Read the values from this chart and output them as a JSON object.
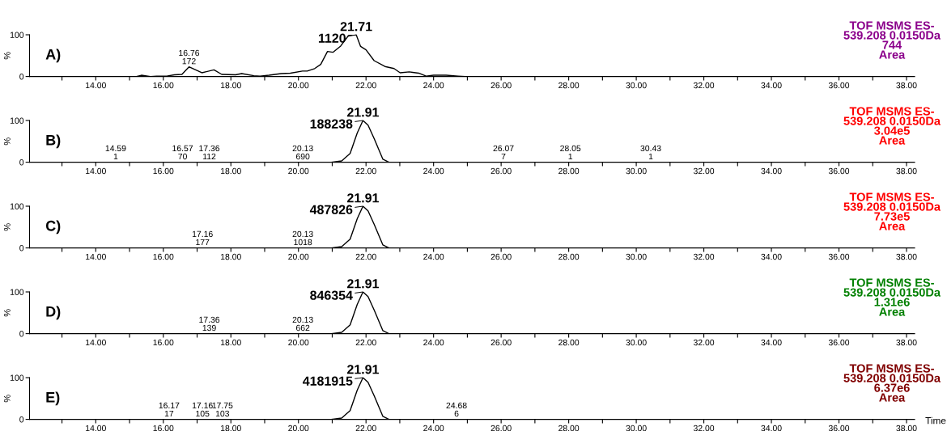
{
  "chart_data": [
    {
      "type": "line",
      "title": "A)",
      "subtitle": "TOF MSMS ES-\n539.208 0.0150Da\n744\nArea",
      "ylabel": "%",
      "x": [
        12.05,
        15.2,
        15.35,
        15.62,
        15.8,
        16.1,
        16.33,
        16.55,
        16.76,
        17.14,
        17.5,
        17.73,
        18.14,
        18.32,
        18.68,
        18.86,
        19.13,
        19.49,
        19.76,
        20.12,
        20.26,
        20.48,
        20.66,
        20.86,
        21.02,
        21.25,
        21.48,
        21.6,
        21.71,
        21.84,
        22.0,
        22.24,
        22.56,
        22.83,
        23.01,
        23.28,
        23.56,
        23.78,
        24.0,
        24.37,
        24.73,
        24.95,
        38.2
      ],
      "series": [
        {
          "color": "#000000",
          "values": [
            0,
            0,
            3,
            0,
            1,
            1,
            4,
            5,
            23,
            9,
            16,
            5,
            4,
            7,
            2,
            1,
            3,
            7,
            8,
            13,
            13,
            19,
            29,
            60,
            58,
            73,
            98,
            100,
            100,
            72,
            64,
            38,
            24,
            19,
            9,
            11,
            8,
            1,
            3,
            3,
            1,
            0,
            0
          ]
        }
      ],
      "annotations": [
        {
          "text": "21.71",
          "x": 21.71,
          "y": 100
        },
        {
          "text": "1120",
          "x": 21.71,
          "y": 100
        },
        {
          "text": "16.76\n172",
          "x": 16.76,
          "y": 23
        }
      ],
      "xlim": [
        12.04,
        38.24
      ],
      "ylim": [
        0,
        100
      ],
      "xticks": [
        {
          "value": 13,
          "label": null
        },
        {
          "value": 14,
          "label": "14.00"
        },
        {
          "value": 15,
          "label": null
        },
        {
          "value": 16,
          "label": "16.00"
        },
        {
          "value": 17,
          "label": null
        },
        {
          "value": 18,
          "label": "18.00"
        },
        {
          "value": 19,
          "label": null
        },
        {
          "value": 20,
          "label": "20.00"
        },
        {
          "value": 21,
          "label": null
        },
        {
          "value": 22,
          "label": "22.00"
        },
        {
          "value": 23,
          "label": null
        },
        {
          "value": 24,
          "label": "24.00"
        },
        {
          "value": 25,
          "label": null
        },
        {
          "value": 26,
          "label": "26.00"
        },
        {
          "value": 27,
          "label": null
        },
        {
          "value": 28,
          "label": "28.00"
        },
        {
          "value": 29,
          "label": null
        },
        {
          "value": 30,
          "label": "30.00"
        },
        {
          "value": 31,
          "label": null
        },
        {
          "value": 32,
          "label": "32.00"
        },
        {
          "value": 33,
          "label": null
        },
        {
          "value": 34,
          "label": "34.00"
        },
        {
          "value": 35,
          "label": null
        },
        {
          "value": 36,
          "label": "36.00"
        },
        {
          "value": 37,
          "label": null
        },
        {
          "value": 38,
          "label": "38.00"
        }
      ],
      "yticks": [
        0,
        100
      ]
    },
    {
      "type": "line",
      "title": "B)",
      "subtitle": "TOF MSMS ES-\n539.208 0.0150Da\n3.04e5\nArea",
      "ylabel": "%",
      "x": [
        12.05,
        20.97,
        21.28,
        21.53,
        21.74,
        21.91,
        22.06,
        22.24,
        22.5,
        22.68,
        38.2
      ],
      "series": [
        {
          "color": "#000000",
          "values": [
            0,
            0,
            3,
            21,
            70,
            100,
            89,
            57,
            7,
            0,
            0
          ]
        }
      ],
      "annotations": [
        {
          "text": "21.91",
          "x": 21.91,
          "y": 100
        },
        {
          "text": "188238",
          "x": 21.91,
          "y": 100
        },
        {
          "text": "14.59\n1",
          "x": 14.59,
          "y": 0
        },
        {
          "text": "16.57\n70",
          "x": 16.57,
          "y": 0
        },
        {
          "text": "17.36\n112",
          "x": 17.36,
          "y": 0
        },
        {
          "text": "20.13\n690",
          "x": 20.13,
          "y": 0
        },
        {
          "text": "26.07\n7",
          "x": 26.07,
          "y": 0
        },
        {
          "text": "28.05\n1",
          "x": 28.05,
          "y": 0
        },
        {
          "text": "30.43\n1",
          "x": 30.43,
          "y": 0
        }
      ],
      "xlim": [
        12.04,
        38.24
      ],
      "ylim": [
        0,
        100
      ],
      "xticks": [
        {
          "value": 13,
          "label": null
        },
        {
          "value": 14,
          "label": "14.00"
        },
        {
          "value": 15,
          "label": null
        },
        {
          "value": 16,
          "label": "16.00"
        },
        {
          "value": 17,
          "label": null
        },
        {
          "value": 18,
          "label": "18.00"
        },
        {
          "value": 19,
          "label": null
        },
        {
          "value": 20,
          "label": "20.00"
        },
        {
          "value": 21,
          "label": null
        },
        {
          "value": 22,
          "label": "22.00"
        },
        {
          "value": 23,
          "label": null
        },
        {
          "value": 24,
          "label": "24.00"
        },
        {
          "value": 25,
          "label": null
        },
        {
          "value": 26,
          "label": "26.00"
        },
        {
          "value": 27,
          "label": null
        },
        {
          "value": 28,
          "label": "28.00"
        },
        {
          "value": 29,
          "label": null
        },
        {
          "value": 30,
          "label": "30.00"
        },
        {
          "value": 31,
          "label": null
        },
        {
          "value": 32,
          "label": "32.00"
        },
        {
          "value": 33,
          "label": null
        },
        {
          "value": 34,
          "label": "34.00"
        },
        {
          "value": 35,
          "label": null
        },
        {
          "value": 36,
          "label": "36.00"
        },
        {
          "value": 37,
          "label": null
        },
        {
          "value": 38,
          "label": "38.00"
        }
      ],
      "yticks": [
        0,
        100
      ]
    },
    {
      "type": "line",
      "title": "C)",
      "subtitle": "TOF MSMS ES-\n539.208 0.0150Da\n7.73e5\nArea",
      "ylabel": "%",
      "x": [
        12.05,
        20.97,
        21.28,
        21.53,
        21.74,
        21.91,
        22.06,
        22.24,
        22.5,
        22.68,
        38.2
      ],
      "series": [
        {
          "color": "#000000",
          "values": [
            0,
            0,
            3,
            21,
            70,
            100,
            89,
            57,
            7,
            0,
            0
          ]
        }
      ],
      "annotations": [
        {
          "text": "21.91",
          "x": 21.91,
          "y": 100
        },
        {
          "text": "487826",
          "x": 21.91,
          "y": 100
        },
        {
          "text": "17.16\n177",
          "x": 17.16,
          "y": 0
        },
        {
          "text": "20.13\n1018",
          "x": 20.13,
          "y": 0
        }
      ],
      "xlim": [
        12.04,
        38.24
      ],
      "ylim": [
        0,
        100
      ],
      "xticks": [
        {
          "value": 13,
          "label": null
        },
        {
          "value": 14,
          "label": "14.00"
        },
        {
          "value": 15,
          "label": null
        },
        {
          "value": 16,
          "label": "16.00"
        },
        {
          "value": 17,
          "label": null
        },
        {
          "value": 18,
          "label": "18.00"
        },
        {
          "value": 19,
          "label": null
        },
        {
          "value": 20,
          "label": "20.00"
        },
        {
          "value": 21,
          "label": null
        },
        {
          "value": 22,
          "label": "22.00"
        },
        {
          "value": 23,
          "label": null
        },
        {
          "value": 24,
          "label": "24.00"
        },
        {
          "value": 25,
          "label": null
        },
        {
          "value": 26,
          "label": "26.00"
        },
        {
          "value": 27,
          "label": null
        },
        {
          "value": 28,
          "label": "28.00"
        },
        {
          "value": 29,
          "label": null
        },
        {
          "value": 30,
          "label": "30.00"
        },
        {
          "value": 31,
          "label": null
        },
        {
          "value": 32,
          "label": "32.00"
        },
        {
          "value": 33,
          "label": null
        },
        {
          "value": 34,
          "label": "34.00"
        },
        {
          "value": 35,
          "label": null
        },
        {
          "value": 36,
          "label": "36.00"
        },
        {
          "value": 37,
          "label": null
        },
        {
          "value": 38,
          "label": "38.00"
        }
      ],
      "yticks": [
        0,
        100
      ]
    },
    {
      "type": "line",
      "title": "D)",
      "subtitle": "TOF MSMS ES-\n539.208 0.0150Da\n1.31e6\nArea",
      "ylabel": "%",
      "x": [
        12.05,
        20.97,
        21.28,
        21.53,
        21.74,
        21.91,
        22.06,
        22.24,
        22.5,
        22.68,
        38.2
      ],
      "series": [
        {
          "color": "#000000",
          "values": [
            0,
            0,
            3,
            21,
            70,
            100,
            89,
            57,
            7,
            0,
            0
          ]
        }
      ],
      "annotations": [
        {
          "text": "21.91",
          "x": 21.91,
          "y": 100
        },
        {
          "text": "846354",
          "x": 21.91,
          "y": 100
        },
        {
          "text": "17.36\n139",
          "x": 17.36,
          "y": 0
        },
        {
          "text": "20.13\n662",
          "x": 20.13,
          "y": 0
        }
      ],
      "xlim": [
        12.04,
        38.24
      ],
      "ylim": [
        0,
        100
      ],
      "xticks": [
        {
          "value": 13,
          "label": null
        },
        {
          "value": 14,
          "label": "14.00"
        },
        {
          "value": 15,
          "label": null
        },
        {
          "value": 16,
          "label": "16.00"
        },
        {
          "value": 17,
          "label": null
        },
        {
          "value": 18,
          "label": "18.00"
        },
        {
          "value": 19,
          "label": null
        },
        {
          "value": 20,
          "label": "20.00"
        },
        {
          "value": 21,
          "label": null
        },
        {
          "value": 22,
          "label": "22.00"
        },
        {
          "value": 23,
          "label": null
        },
        {
          "value": 24,
          "label": "24.00"
        },
        {
          "value": 25,
          "label": null
        },
        {
          "value": 26,
          "label": "26.00"
        },
        {
          "value": 27,
          "label": null
        },
        {
          "value": 28,
          "label": "28.00"
        },
        {
          "value": 29,
          "label": null
        },
        {
          "value": 30,
          "label": "30.00"
        },
        {
          "value": 31,
          "label": null
        },
        {
          "value": 32,
          "label": "32.00"
        },
        {
          "value": 33,
          "label": null
        },
        {
          "value": 34,
          "label": "34.00"
        },
        {
          "value": 35,
          "label": null
        },
        {
          "value": 36,
          "label": "36.00"
        },
        {
          "value": 37,
          "label": null
        },
        {
          "value": 38,
          "label": "38.00"
        }
      ],
      "yticks": [
        0,
        100
      ]
    },
    {
      "type": "line",
      "title": "E)",
      "subtitle": "TOF MSMS ES-\n539.208 0.0150Da\n6.37e6\nArea",
      "ylabel": "%",
      "xlabel": "Time",
      "x": [
        12.05,
        20.97,
        21.28,
        21.53,
        21.74,
        21.91,
        22.06,
        22.24,
        22.5,
        22.68,
        38.2
      ],
      "series": [
        {
          "color": "#000000",
          "values": [
            0,
            0,
            3,
            21,
            70,
            100,
            89,
            57,
            7,
            0,
            0
          ]
        }
      ],
      "annotations": [
        {
          "text": "21.91",
          "x": 21.91,
          "y": 100
        },
        {
          "text": "4181915",
          "x": 21.91,
          "y": 100
        },
        {
          "text": "16.17\n17",
          "x": 16.17,
          "y": 0
        },
        {
          "text": "17.16\n105",
          "x": 17.16,
          "y": 0
        },
        {
          "text": "17.75\n103",
          "x": 17.75,
          "y": 0
        },
        {
          "text": "24.68\n6",
          "x": 24.68,
          "y": 0
        }
      ],
      "xlim": [
        12.04,
        38.24
      ],
      "ylim": [
        0,
        100
      ],
      "xticks": [
        {
          "value": 13,
          "label": null
        },
        {
          "value": 14,
          "label": "14.00"
        },
        {
          "value": 15,
          "label": null
        },
        {
          "value": 16,
          "label": "16.00"
        },
        {
          "value": 17,
          "label": null
        },
        {
          "value": 18,
          "label": "18.00"
        },
        {
          "value": 19,
          "label": null
        },
        {
          "value": 20,
          "label": "20.00"
        },
        {
          "value": 21,
          "label": null
        },
        {
          "value": 22,
          "label": "22.00"
        },
        {
          "value": 23,
          "label": null
        },
        {
          "value": 24,
          "label": "24.00"
        },
        {
          "value": 25,
          "label": null
        },
        {
          "value": 26,
          "label": "26.00"
        },
        {
          "value": 27,
          "label": null
        },
        {
          "value": 28,
          "label": "28.00"
        },
        {
          "value": 29,
          "label": null
        },
        {
          "value": 30,
          "label": "30.00"
        },
        {
          "value": 31,
          "label": null
        },
        {
          "value": 32,
          "label": "32.00"
        },
        {
          "value": 33,
          "label": null
        },
        {
          "value": 34,
          "label": "34.00"
        },
        {
          "value": 35,
          "label": null
        },
        {
          "value": 36,
          "label": "36.00"
        },
        {
          "value": 37,
          "label": null
        },
        {
          "value": 38,
          "label": "38.00"
        }
      ],
      "yticks": [
        0,
        100
      ]
    }
  ]
}
